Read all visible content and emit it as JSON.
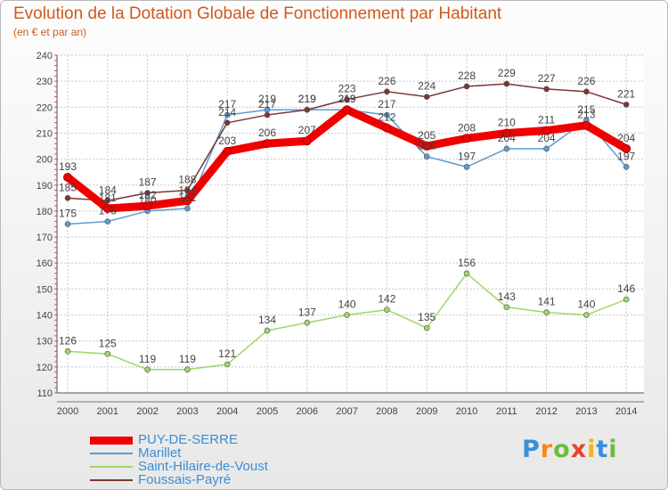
{
  "header": {
    "title": "Evolution de la Dotation Globale de Fonctionnement par Habitant",
    "subtitle": "(en € et par an)"
  },
  "logo": {
    "letters": [
      "P",
      "r",
      "o",
      "x",
      "i",
      "t",
      "i"
    ],
    "colors": [
      "#3a8fd8",
      "#f28a1d",
      "#6cbd3c",
      "#e8432b",
      "#f2b31d",
      "#3a8fd8",
      "#6cbd3c"
    ]
  },
  "chart_data": {
    "type": "line",
    "x": [
      "2000",
      "2001",
      "2002",
      "2003",
      "2004",
      "2005",
      "2006",
      "2007",
      "2008",
      "2009",
      "2010",
      "2011",
      "2012",
      "2013",
      "2014"
    ],
    "ylim": [
      110,
      240
    ],
    "yticks": [
      110,
      120,
      130,
      140,
      150,
      160,
      170,
      180,
      190,
      200,
      210,
      220,
      230,
      240
    ],
    "grid": true,
    "legend_position": "bottom-left",
    "series": [
      {
        "name": "PUY-DE-SERRE",
        "color": "#f00000",
        "values": [
          193,
          181,
          182,
          184,
          203,
          206,
          207,
          219,
          212,
          205,
          208,
          210,
          211,
          213,
          204
        ]
      },
      {
        "name": "Marillet",
        "color": "#5c9bd1",
        "values": [
          175,
          176,
          180,
          181,
          217,
          219,
          219,
          219,
          217,
          201,
          197,
          204,
          204,
          215,
          197
        ]
      },
      {
        "name": "Saint-Hilaire-de-Voust",
        "color": "#9cd86a",
        "values": [
          126,
          125,
          119,
          119,
          121,
          134,
          137,
          140,
          142,
          135,
          156,
          143,
          141,
          140,
          146
        ]
      },
      {
        "name": "Foussais-Payré",
        "color": "#7a3636",
        "values": [
          185,
          184,
          187,
          188,
          214,
          217,
          219,
          223,
          226,
          224,
          228,
          229,
          227,
          226,
          221
        ]
      }
    ]
  }
}
